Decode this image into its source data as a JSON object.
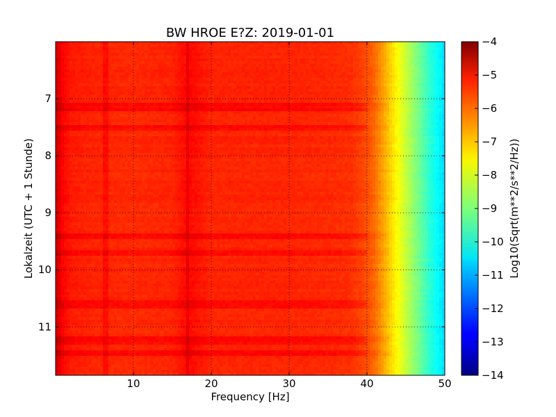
{
  "chart_data": {
    "type": "heatmap",
    "title": "BW HROE E?Z: 2019-01-01",
    "xlabel": "Frequency [Hz]",
    "ylabel": "Lokalzeit (UTC + 1 Stunde)",
    "xlim": [
      0,
      50
    ],
    "ylim": [
      6.0,
      11.85
    ],
    "y_inverted": true,
    "x_ticks": [
      10,
      20,
      30,
      40,
      50
    ],
    "y_ticks": [
      7,
      8,
      9,
      10,
      11
    ],
    "grid": true,
    "colormap": "jet",
    "colorbar": {
      "label": "Log10(Sqrt(m**2/s**2/Hz))",
      "range": [
        -14,
        -4
      ],
      "ticks": [
        -4,
        -5,
        -6,
        -7,
        -8,
        -9,
        -10,
        -11,
        -12,
        -13,
        -14
      ]
    },
    "frequency_profile": {
      "frequency_hz": [
        0,
        0.5,
        1,
        2,
        5,
        10,
        15,
        17,
        20,
        25,
        30,
        35,
        38,
        40,
        41,
        42,
        43,
        44,
        45,
        46,
        47,
        48,
        49,
        50
      ],
      "log10_amplitude": [
        -4.8,
        -5.0,
        -5.3,
        -5.5,
        -5.6,
        -5.65,
        -5.6,
        -5.3,
        -5.6,
        -5.6,
        -5.6,
        -5.65,
        -5.7,
        -6.0,
        -6.3,
        -6.8,
        -7.3,
        -7.8,
        -8.3,
        -8.8,
        -9.3,
        -9.8,
        -10.2,
        -10.6
      ]
    },
    "notable_features": {
      "vertical_bands_hz": [
        6.3,
        17.0
      ],
      "horizontal_bands_hour": [
        7.15,
        7.5,
        9.4,
        9.7,
        10.6,
        11.25,
        11.45
      ]
    }
  }
}
